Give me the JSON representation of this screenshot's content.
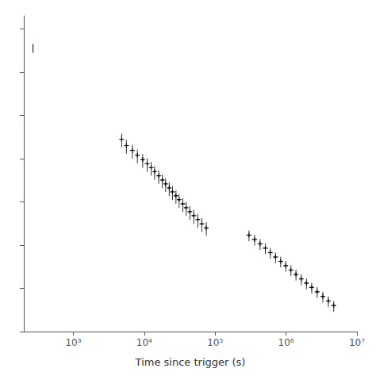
{
  "chart_data": {
    "type": "scatter",
    "xlabel": "Time since trigger (s)",
    "log": true,
    "grid": false,
    "tick_labels": "x",
    "xlim": [
      200,
      10000000
    ],
    "xticks": [
      {
        "value": 1000,
        "label": "10³"
      },
      {
        "value": 10000,
        "label": "10⁴"
      },
      {
        "value": 100000,
        "label": "10⁵"
      },
      {
        "value": 1000000,
        "label": "10⁶"
      },
      {
        "value": 10000000,
        "label": "10⁷"
      }
    ],
    "ylim": [
      1e-15,
      2e-08
    ],
    "yticks": [
      1e-15,
      1e-14,
      1e-13,
      1e-12,
      1e-11,
      1e-10,
      1e-09,
      1e-08
    ],
    "series": [
      {
        "type": "line",
        "color": "#000000",
        "x": [
          270,
          270
        ],
        "values": [
          2.8e-09,
          4.5e-09
        ]
      },
      {
        "type": "scatter",
        "color": "#000000",
        "marker": "+",
        "x": [
          4800,
          5600,
          6800,
          8000,
          9500,
          11000,
          12500,
          14000,
          16000,
          18000,
          20000,
          22500,
          25000,
          28000,
          31000,
          35000,
          39000,
          44000,
          50000,
          57000,
          65000,
          75000
        ],
        "values": [
          2.8e-11,
          2e-11,
          1.55e-11,
          1.2e-11,
          9.5e-12,
          7.6e-12,
          6.2e-12,
          5e-12,
          4e-12,
          3.2e-12,
          2.6e-12,
          2.1e-12,
          1.7e-12,
          1.38e-12,
          1.12e-12,
          9e-13,
          7.3e-13,
          5.9e-13,
          4.8e-13,
          3.9e-13,
          3.1e-13,
          2.5e-13
        ],
        "xerr": [
          150,
          200,
          300,
          350,
          400,
          500,
          550,
          650,
          800,
          900,
          1000,
          1100,
          1300,
          1500,
          1700,
          2000,
          2200,
          2600,
          3000,
          3500,
          4000,
          5000
        ],
        "yerr": [
          9.8e-12,
          7e-12,
          5.425e-12,
          4.2e-12,
          3.325e-12,
          2.66e-12,
          2.17e-12,
          1.75e-12,
          1.4e-12,
          1.12e-12,
          9.1e-13,
          7.35e-13,
          5.95e-13,
          4.83e-13,
          3.92e-13,
          3.15e-13,
          2.555e-13,
          2.065e-13,
          1.68e-13,
          1.365e-13,
          1.085e-13,
          8.75e-14
        ]
      },
      {
        "type": "scatter",
        "color": "#000000",
        "marker": "+",
        "x": [
          300000,
          360000,
          430000,
          510000,
          600000,
          710000,
          840000,
          990000,
          1170000,
          1380000,
          1640000,
          1940000,
          2300000,
          2750000,
          3300000,
          3950000,
          4700000
        ],
        "values": [
          1.7e-13,
          1.35e-13,
          1.07e-13,
          8.5e-14,
          6.7e-14,
          5.3e-14,
          4.2e-14,
          3.35e-14,
          2.65e-14,
          2.1e-14,
          1.65e-14,
          1.32e-14,
          1.05e-14,
          8.3e-15,
          6.5e-15,
          5.1e-15,
          4e-15
        ],
        "xerr": [
          21000,
          25200,
          30100,
          35700,
          42000,
          49700,
          58800,
          69300,
          81900,
          96600,
          114800,
          135800,
          161000,
          192500,
          231000,
          276500,
          329000
        ],
        "yerr": [
          4.76e-14,
          3.78e-14,
          2.996e-14,
          2.38e-14,
          1.876e-14,
          1.484e-14,
          1.176e-14,
          9.38e-15,
          7.42e-15,
          5.88e-15,
          4.62e-15,
          3.696e-15,
          2.94e-15,
          2.324e-15,
          1.82e-15,
          1.428e-15,
          1.12e-15
        ]
      }
    ]
  }
}
